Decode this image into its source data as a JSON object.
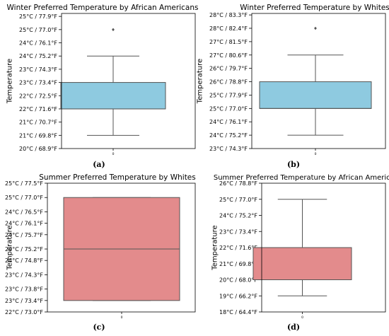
{
  "chart_data": [
    {
      "type": "box",
      "caption": "(a)",
      "title": "Winter Preferred Temperature by African Americans",
      "ylabel": "Temperature",
      "xticks": [
        "0"
      ],
      "yticks": [
        "20°C / 68.9°F",
        "21°C / 69.8°F",
        "21°C / 70.7°F",
        "22°C / 71.6°F",
        "22°C / 72.5°F",
        "23°C / 73.4°F",
        "23°C / 74.3°F",
        "24°C / 75.2°F",
        "24°C / 76.1°F",
        "25°C / 77.0°F",
        "25°C / 77.9°F"
      ],
      "ytick_values": [
        68.9,
        69.8,
        70.7,
        71.6,
        72.5,
        73.4,
        74.3,
        75.2,
        76.1,
        77.0,
        77.9
      ],
      "ylim": [
        68.9,
        78.1
      ],
      "box": {
        "whisker_low": 69.8,
        "q1": 71.6,
        "median": 71.6,
        "q3": 73.4,
        "whisker_high": 75.2,
        "outliers": [
          77.0
        ]
      },
      "color": "#8ecae0"
    },
    {
      "type": "box",
      "caption": "(b)",
      "title": "Winter Preferred Temperature by Whites",
      "ylabel": "Temperature",
      "xticks": [
        "0"
      ],
      "yticks": [
        "23°C / 74.3°F",
        "24°C / 75.2°F",
        "24°C / 76.1°F",
        "25°C / 77.0°F",
        "25°C / 77.9°F",
        "26°C / 78.8°F",
        "26°C / 79.7°F",
        "27°C / 80.6°F",
        "27°C / 81.5°F",
        "28°C / 82.4°F",
        "28°C / 83.3°F"
      ],
      "ytick_values": [
        74.3,
        75.2,
        76.1,
        77.0,
        77.9,
        78.8,
        79.7,
        80.6,
        81.5,
        82.4,
        83.3
      ],
      "ylim": [
        74.3,
        83.4
      ],
      "box": {
        "whisker_low": 75.2,
        "q1": 77.0,
        "median": 77.0,
        "q3": 78.8,
        "whisker_high": 80.6,
        "outliers": [
          82.4
        ]
      },
      "color": "#8ecae0"
    },
    {
      "type": "box",
      "caption": "(c)",
      "title": "Summer Preferred Temperature by Whites",
      "ylabel": "Temperature",
      "xticks": [
        "0"
      ],
      "yticks": [
        "22°C / 73.0°F",
        "23°C / 73.4°F",
        "23°C / 73.8°F",
        "23°C / 74.3°F",
        "24°C / 74.8°F",
        "24°C / 75.2°F",
        "24°C / 75.7°F",
        "24°C / 76.1°F",
        "24°C / 76.5°F",
        "25°C / 77.0°F",
        "25°C / 77.5°F"
      ],
      "ytick_values": [
        73.0,
        73.4,
        73.8,
        74.3,
        74.8,
        75.2,
        75.7,
        76.1,
        76.5,
        77.0,
        77.5
      ],
      "ylim": [
        73.0,
        77.5
      ],
      "box": {
        "whisker_low": 73.4,
        "q1": 73.4,
        "median": 75.2,
        "q3": 77.0,
        "whisker_high": 77.0,
        "outliers": []
      },
      "color": "#e38b8c"
    },
    {
      "type": "box",
      "caption": "(d)",
      "title": "Summer Preferred Temperature by African American",
      "ylabel": "Temperature",
      "xticks": [
        "0"
      ],
      "yticks": [
        "18°C / 64.4°F",
        "19°C / 66.2°F",
        "20°C / 68.0°F",
        "21°C / 69.8°F",
        "22°C / 71.6°F",
        "23°C / 73.4°F",
        "24°C / 75.2°F",
        "25°C / 77.0°F",
        "26°C / 78.8°F"
      ],
      "ytick_values": [
        64.4,
        66.2,
        68.0,
        69.8,
        71.6,
        73.4,
        75.2,
        77.0,
        78.8
      ],
      "ylim": [
        64.4,
        78.8
      ],
      "box": {
        "whisker_low": 66.2,
        "q1": 68.0,
        "median": 68.0,
        "q3": 71.6,
        "whisker_high": 77.0,
        "outliers": []
      },
      "color": "#e38b8c"
    }
  ]
}
